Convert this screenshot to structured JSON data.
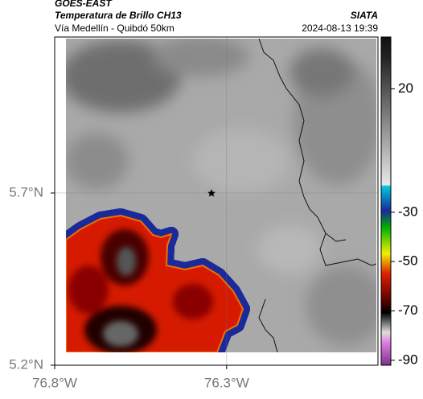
{
  "header": {
    "title": "GOES-EAST",
    "subtitle": "Temperatura de Brillo CH13",
    "region": "Vía Medellín - Quibdó 50km",
    "source": "SIATA",
    "timestamp": "2024-08-13 19:39"
  },
  "map": {
    "xlim": [
      -76.8,
      -75.86
    ],
    "ylim": [
      5.2,
      6.153
    ],
    "xticks": [
      {
        "value": -76.8,
        "label": "76.8°W"
      },
      {
        "value": -76.3,
        "label": "76.3°W"
      }
    ],
    "yticks": [
      {
        "value": 5.2,
        "label": "5.2°N"
      },
      {
        "value": 5.7,
        "label": "5.7°N"
      }
    ],
    "grid": true
  },
  "colorbar": {
    "lim": [
      -92,
      41
    ],
    "ticks": [
      20,
      -30,
      -50,
      -70,
      -90
    ]
  }
}
